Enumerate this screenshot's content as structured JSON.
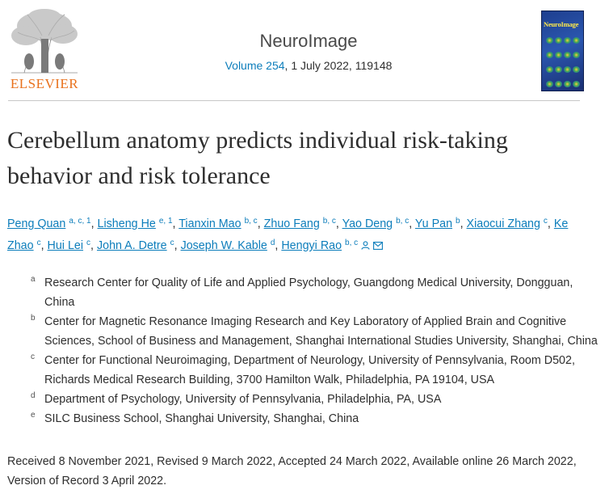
{
  "publisher": {
    "name": "ELSEVIER",
    "journal": "NeuroImage",
    "volume_link": "Volume 254",
    "citation_rest": ", 1 July 2022, 119148",
    "cover_title": "NeuroImage"
  },
  "article": {
    "title": "Cerebellum anatomy predicts individual risk-taking behavior and risk tolerance"
  },
  "authors": [
    {
      "name": "Peng Quan",
      "sup": "a, c, 1"
    },
    {
      "name": "Lisheng He",
      "sup": "e, 1"
    },
    {
      "name": "Tianxin Mao",
      "sup": "b, c"
    },
    {
      "name": "Zhuo Fang",
      "sup": "b, c"
    },
    {
      "name": "Yao Deng",
      "sup": "b, c"
    },
    {
      "name": "Yu Pan",
      "sup": "b"
    },
    {
      "name": "Xiaocui Zhang",
      "sup": "c"
    },
    {
      "name": "Ke Zhao",
      "sup": "c"
    },
    {
      "name": "Hui Lei",
      "sup": "c"
    },
    {
      "name": "John A. Detre",
      "sup": "c"
    },
    {
      "name": "Joseph W. Kable",
      "sup": "d"
    },
    {
      "name": "Hengyi Rao",
      "sup": "b, c"
    }
  ],
  "affiliations": [
    {
      "letter": "a",
      "text": "Research Center for Quality of Life and Applied Psychology, Guangdong Medical University, Dongguan, China"
    },
    {
      "letter": "b",
      "text": "Center for Magnetic Resonance Imaging Research and Key Laboratory of Applied Brain and Cognitive Sciences, School of Business and Management, Shanghai International Studies University, Shanghai, China"
    },
    {
      "letter": "c",
      "text": "Center for Functional Neuroimaging, Department of Neurology, University of Pennsylvania, Room D502, Richards Medical Research Building, 3700 Hamilton Walk, Philadelphia, PA 19104, USA"
    },
    {
      "letter": "d",
      "text": "Department of Psychology, University of Pennsylvania, Philadelphia, PA, USA"
    },
    {
      "letter": "e",
      "text": "SILC Business School, Shanghai University, Shanghai, China"
    }
  ],
  "dates": "Received 8 November 2021, Revised 9 March 2022, Accepted 24 March 2022, Available online 26 March 2022, Version of Record 3 April 2022.",
  "colors": {
    "link": "#0c7dbb",
    "brand": "#e9711c"
  }
}
